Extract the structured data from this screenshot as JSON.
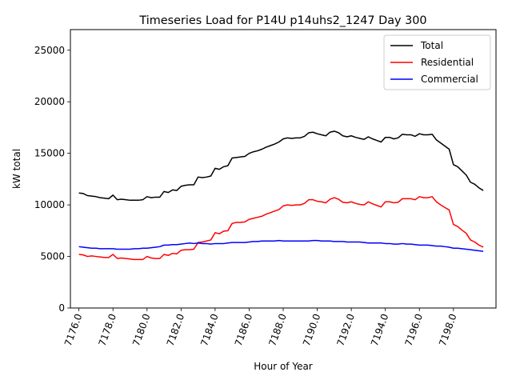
{
  "chart_data": {
    "type": "line",
    "title": "Timeseries Load for P14U p14uhs2_1247  Day 300",
    "xlabel": "Hour of Year",
    "ylabel": "kW total",
    "xlim": [
      7175.5,
      7200.5
    ],
    "ylim": [
      0,
      27000
    ],
    "xticks": [
      7176,
      7178,
      7180,
      7182,
      7184,
      7186,
      7188,
      7190,
      7192,
      7194,
      7196,
      7198
    ],
    "xtick_labels": [
      "7176.0",
      "7178.0",
      "7180.0",
      "7182.0",
      "7184.0",
      "7186.0",
      "7188.0",
      "7190.0",
      "7192.0",
      "7194.0",
      "7196.0",
      "7198.0"
    ],
    "yticks": [
      0,
      5000,
      10000,
      15000,
      20000,
      25000
    ],
    "ytick_labels": [
      "0",
      "5000",
      "10000",
      "15000",
      "20000",
      "25000"
    ],
    "legend_position": "top-right",
    "x": [
      7176,
      7176.25,
      7176.5,
      7176.75,
      7177,
      7177.25,
      7177.5,
      7177.75,
      7178,
      7178.25,
      7178.5,
      7178.75,
      7179,
      7179.25,
      7179.5,
      7179.75,
      7180,
      7180.25,
      7180.5,
      7180.75,
      7181,
      7181.25,
      7181.5,
      7181.75,
      7182,
      7182.25,
      7182.5,
      7182.75,
      7183,
      7183.25,
      7183.5,
      7183.75,
      7184,
      7184.25,
      7184.5,
      7184.75,
      7185,
      7185.25,
      7185.5,
      7185.75,
      7186,
      7186.25,
      7186.5,
      7186.75,
      7187,
      7187.25,
      7187.5,
      7187.75,
      7188,
      7188.25,
      7188.5,
      7188.75,
      7189,
      7189.25,
      7189.5,
      7189.75,
      7190,
      7190.25,
      7190.5,
      7190.75,
      7191,
      7191.25,
      7191.5,
      7191.75,
      7192,
      7192.25,
      7192.5,
      7192.75,
      7193,
      7193.25,
      7193.5,
      7193.75,
      7194,
      7194.25,
      7194.5,
      7194.75,
      7195,
      7195.25,
      7195.5,
      7195.75,
      7196,
      7196.25,
      7196.5,
      7196.75,
      7197,
      7197.25,
      7197.5,
      7197.75,
      7198,
      7198.25,
      7198.5,
      7198.75,
      7199,
      7199.25,
      7199.5,
      7199.75
    ],
    "series": [
      {
        "name": "Total",
        "color": "#000000",
        "values": [
          11150,
          11100,
          10900,
          10850,
          10800,
          10700,
          10650,
          10600,
          10950,
          10500,
          10550,
          10500,
          10450,
          10450,
          10450,
          10500,
          10800,
          10700,
          10750,
          10750,
          11300,
          11200,
          11450,
          11400,
          11800,
          11900,
          11950,
          11950,
          12700,
          12650,
          12700,
          12800,
          13550,
          13450,
          13700,
          13800,
          14550,
          14600,
          14650,
          14700,
          15000,
          15150,
          15250,
          15400,
          15600,
          15750,
          15900,
          16100,
          16400,
          16500,
          16450,
          16500,
          16500,
          16650,
          17000,
          17050,
          16900,
          16800,
          16700,
          17050,
          17150,
          17000,
          16700,
          16600,
          16700,
          16550,
          16450,
          16350,
          16600,
          16400,
          16250,
          16100,
          16550,
          16550,
          16400,
          16500,
          16850,
          16800,
          16800,
          16650,
          16900,
          16800,
          16800,
          16850,
          16300,
          16000,
          15700,
          15400,
          13900,
          13700,
          13300,
          12900,
          12200,
          12000,
          11650,
          11400
        ]
      },
      {
        "name": "Residential",
        "color": "#ff0000",
        "values": [
          5200,
          5150,
          5000,
          5050,
          5000,
          4950,
          4900,
          4900,
          5200,
          4800,
          4850,
          4800,
          4750,
          4700,
          4700,
          4700,
          5000,
          4850,
          4800,
          4800,
          5200,
          5100,
          5300,
          5250,
          5600,
          5650,
          5650,
          5700,
          6350,
          6400,
          6500,
          6600,
          7300,
          7200,
          7450,
          7500,
          8200,
          8300,
          8300,
          8350,
          8600,
          8700,
          8800,
          8900,
          9100,
          9250,
          9400,
          9550,
          9900,
          10000,
          9950,
          10000,
          10000,
          10150,
          10500,
          10500,
          10350,
          10300,
          10200,
          10550,
          10700,
          10550,
          10250,
          10200,
          10300,
          10150,
          10050,
          10000,
          10300,
          10100,
          9950,
          9800,
          10300,
          10300,
          10200,
          10250,
          10600,
          10600,
          10600,
          10500,
          10800,
          10700,
          10700,
          10800,
          10300,
          10000,
          9750,
          9500,
          8100,
          7900,
          7550,
          7250,
          6600,
          6400,
          6100,
          5900
        ]
      },
      {
        "name": "Commercial",
        "color": "#0000ff",
        "values": [
          5950,
          5900,
          5850,
          5800,
          5800,
          5750,
          5750,
          5750,
          5750,
          5700,
          5700,
          5700,
          5700,
          5750,
          5750,
          5800,
          5800,
          5850,
          5900,
          5950,
          6100,
          6100,
          6150,
          6150,
          6200,
          6250,
          6300,
          6250,
          6300,
          6250,
          6250,
          6200,
          6250,
          6250,
          6250,
          6300,
          6350,
          6350,
          6350,
          6350,
          6400,
          6450,
          6450,
          6500,
          6500,
          6500,
          6500,
          6550,
          6500,
          6500,
          6500,
          6500,
          6500,
          6500,
          6500,
          6550,
          6550,
          6500,
          6500,
          6500,
          6450,
          6450,
          6450,
          6400,
          6400,
          6400,
          6400,
          6350,
          6300,
          6300,
          6300,
          6300,
          6250,
          6250,
          6200,
          6200,
          6250,
          6200,
          6200,
          6150,
          6100,
          6100,
          6100,
          6050,
          6000,
          6000,
          5950,
          5900,
          5800,
          5800,
          5750,
          5700,
          5650,
          5600,
          5550,
          5500
        ]
      }
    ]
  }
}
